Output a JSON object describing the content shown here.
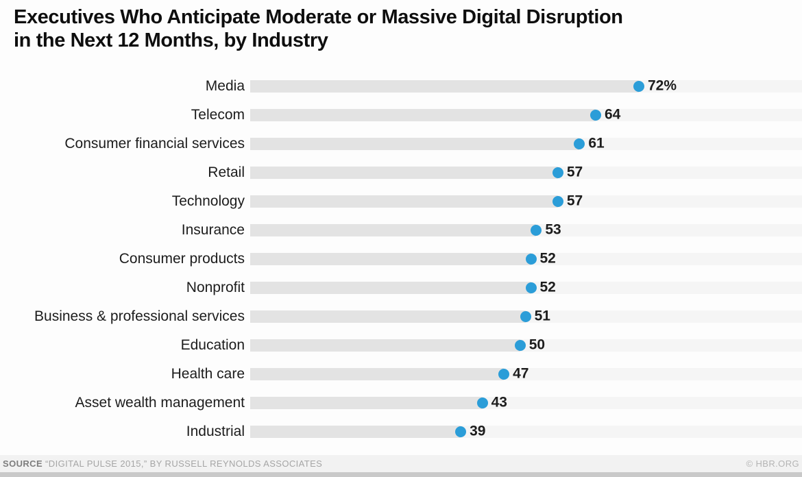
{
  "title": {
    "line1": "Executives Who Anticipate Moderate or Massive Digital Disruption",
    "line2": "in the Next 12 Months, by Industry"
  },
  "chart_data": {
    "type": "scatter",
    "subtype": "dot-plot-with-bars",
    "title": "Executives Who Anticipate Moderate or Massive Digital Disruption in the Next 12 Months, by Industry",
    "categories": [
      "Media",
      "Telecom",
      "Consumer financial services",
      "Retail",
      "Technology",
      "Insurance",
      "Consumer products",
      "Nonprofit",
      "Business & professional services",
      "Education",
      "Health care",
      "Asset wealth management",
      "Industrial"
    ],
    "values": [
      72,
      64,
      61,
      57,
      57,
      53,
      52,
      52,
      51,
      50,
      47,
      43,
      39
    ],
    "value_labels": [
      "72%",
      "64",
      "61",
      "57",
      "57",
      "53",
      "52",
      "52",
      "51",
      "50",
      "47",
      "43",
      "39"
    ],
    "unit": "percent",
    "xlabel": "",
    "ylabel": "",
    "xlim": [
      0,
      100
    ],
    "grid": false,
    "legend": false,
    "dot_color": "#2b9dd8",
    "bar_color": "#e3e3e3",
    "track_color": "#f5f5f5"
  },
  "footer": {
    "source_label": "SOURCE",
    "source_text": "“DIGITAL PULSE 2015,” BY RUSSELL REYNOLDS ASSOCIATES",
    "credit": "© HBR.ORG"
  }
}
